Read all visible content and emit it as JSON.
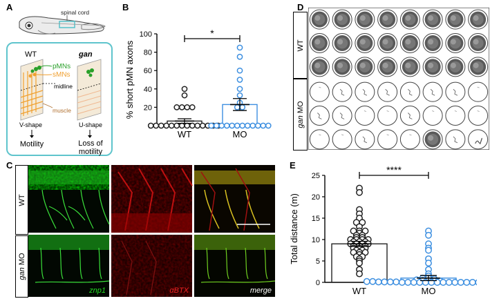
{
  "panels": {
    "a": {
      "label": "A",
      "spinal_cord": "spinal cord",
      "wt": "WT",
      "gan": "gan",
      "pmns": "pMNs",
      "smns": "sMNs",
      "midline": "midline",
      "muscle": "muscle",
      "v_shape": "V-shape",
      "u_shape": "U-shape",
      "motility": "Motility",
      "loss1": "Loss of",
      "loss2": "motility"
    },
    "b": {
      "label": "B"
    },
    "c": {
      "label": "C",
      "row_wt": "WT",
      "row_gan": "gan",
      "row_mo": "MO",
      "znp1": "znp1",
      "abtx": "αBTX",
      "merge": "merge"
    },
    "d": {
      "label": "D",
      "row_wt": "WT",
      "row_gan": "gan",
      "row_mo": "MO"
    },
    "e": {
      "label": "E"
    }
  },
  "colors": {
    "teal_box": "#5ec4cc",
    "pmn_green": "#2aa02a",
    "smn_orange": "#f0a030",
    "mo_blue": "#3d8fe0",
    "micro_green": "#22dd22",
    "micro_red": "#dd1111"
  },
  "chart_data": [
    {
      "type": "bar",
      "panel": "B",
      "categories": [
        "WT",
        "MO"
      ],
      "values": [
        5,
        23
      ],
      "sem": [
        2.5,
        6.5
      ],
      "ylabel": "% short pMN axons",
      "xlabel": "",
      "ylim": [
        0,
        100
      ],
      "yticks": [
        0,
        20,
        40,
        60,
        80,
        100
      ],
      "significance": "*",
      "points": {
        "WT": [
          0,
          0,
          0,
          0,
          0,
          0,
          0,
          0,
          0,
          0,
          0,
          0,
          0,
          0,
          20,
          20,
          20,
          20,
          33,
          40
        ],
        "MO": [
          0,
          0,
          0,
          0,
          0,
          0,
          0,
          0,
          0,
          0,
          0,
          0,
          20,
          20,
          25,
          33,
          40,
          50,
          60,
          75,
          85
        ]
      },
      "point_colors": [
        "#222222",
        "#3d8fe0"
      ]
    },
    {
      "type": "bar",
      "panel": "E",
      "categories": [
        "WT",
        "MO"
      ],
      "values": [
        9,
        1
      ],
      "sem": [
        0.6,
        0.6
      ],
      "ylabel": "Total distance (m)",
      "xlabel": "",
      "ylim": [
        0,
        25
      ],
      "yticks": [
        0,
        5,
        10,
        15,
        20,
        25
      ],
      "significance": "****",
      "points": {
        "WT": [
          22,
          21,
          17,
          16,
          15,
          14,
          14,
          13,
          12,
          12,
          12,
          11.5,
          11,
          11,
          10.5,
          10.5,
          10,
          10,
          10,
          10,
          9.5,
          9.5,
          9.5,
          9,
          9,
          9,
          9,
          8.5,
          8.5,
          8.5,
          8,
          8,
          8,
          7.5,
          7.5,
          7,
          7,
          7,
          6.5,
          6,
          6,
          5.5,
          5,
          4.5,
          3,
          2
        ],
        "MO": [
          12,
          11,
          9,
          8,
          7.5,
          5.5,
          4.5,
          3,
          2,
          1.5,
          1,
          1,
          0.8,
          0.6,
          0.5,
          0.4,
          0.3,
          0.3,
          0.2,
          0.2,
          0.1,
          0.1,
          0.1,
          0.1,
          0,
          0,
          0,
          0,
          0,
          0,
          0,
          0,
          0,
          0,
          0,
          0,
          0,
          0,
          0,
          0
        ]
      },
      "point_colors": [
        "#222222",
        "#3d8fe0"
      ]
    }
  ],
  "wells": {
    "rows": 6,
    "cols": 8,
    "pattern": [
      [
        3,
        3,
        3,
        3,
        3,
        3,
        3,
        3
      ],
      [
        3,
        3,
        3,
        3,
        3,
        3,
        3,
        3
      ],
      [
        3,
        3,
        3,
        3,
        3,
        3,
        3,
        3
      ],
      [
        0,
        1,
        1,
        1,
        1,
        1,
        1,
        0
      ],
      [
        1,
        1,
        0,
        0,
        1,
        0,
        0,
        0
      ],
      [
        0,
        0,
        1,
        0,
        0,
        3,
        1,
        2
      ]
    ]
  }
}
